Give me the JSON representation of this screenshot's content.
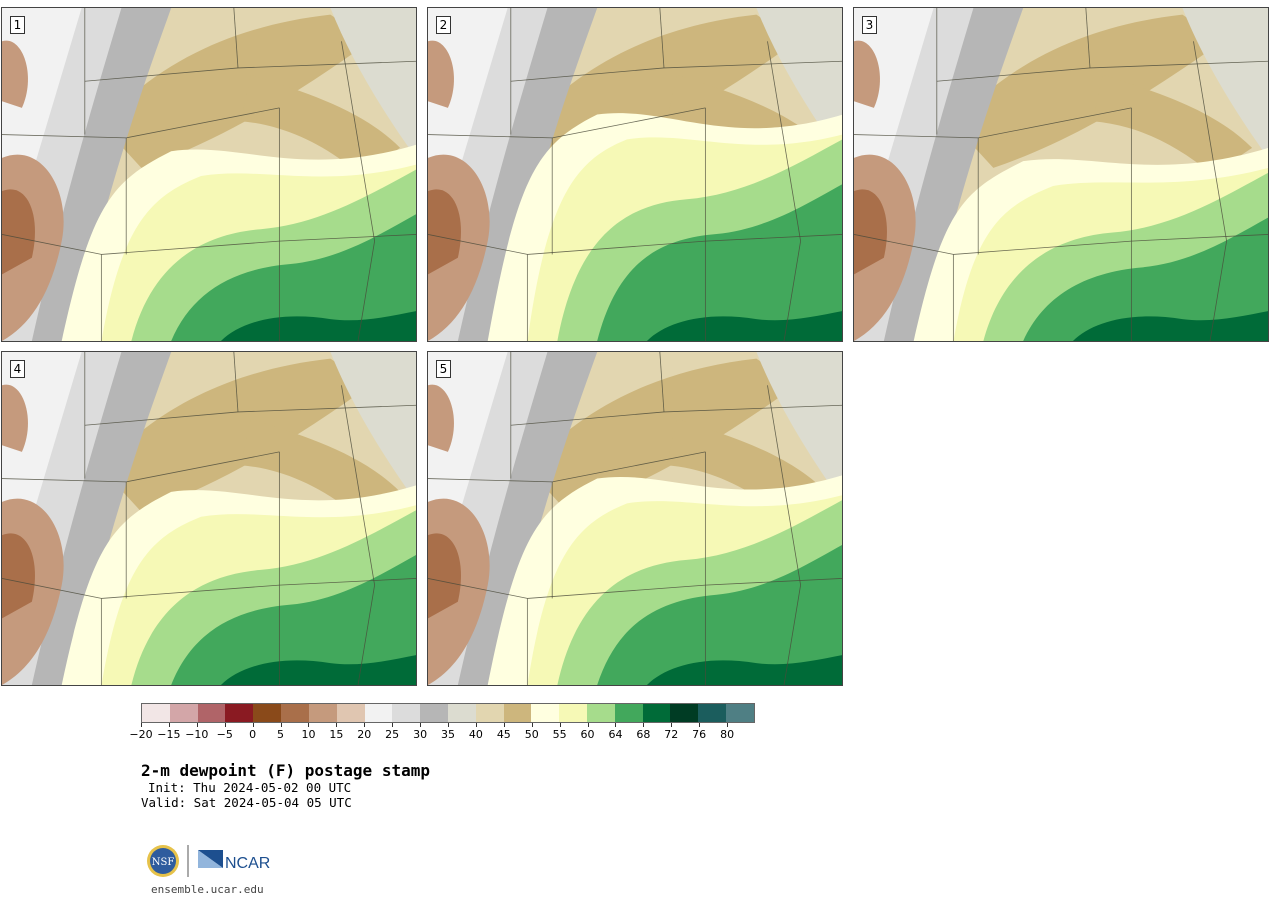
{
  "figure": {
    "title": "2-m dewpoint (F) postage stamp",
    "init": "Init: Thu 2024-05-02 00 UTC",
    "valid": "Valid: Sat 2024-05-04 05 UTC",
    "website": "ensemble.ucar.edu",
    "logos": {
      "nsf": "NSF",
      "ncar": "NCAR"
    }
  },
  "panels": [
    {
      "label": "1",
      "moist_front_frac": 0.53,
      "bulge": 0.1
    },
    {
      "label": "2",
      "moist_front_frac": 0.44,
      "bulge": 0.12
    },
    {
      "label": "3",
      "moist_front_frac": 0.54,
      "bulge": 0.08
    },
    {
      "label": "4",
      "moist_front_frac": 0.52,
      "bulge": 0.1
    },
    {
      "label": "5",
      "moist_front_frac": 0.49,
      "bulge": 0.11
    }
  ],
  "colorbar": {
    "colors": [
      "#f2e6e6",
      "#d3a6a8",
      "#b06468",
      "#8a1a22",
      "#8a4a1a",
      "#a96f4a",
      "#c59a7d",
      "#e0c6b1",
      "#f2f2f2",
      "#dcdcdc",
      "#b6b6b6",
      "#dcdcd0",
      "#e2d6b0",
      "#cdb67d",
      "#ffffe0",
      "#f6f9b6",
      "#a6dc8c",
      "#42a85c",
      "#006b38",
      "#003c24",
      "#1b5d5d",
      "#4f7f84"
    ],
    "tick_labels": [
      "−20",
      "−15",
      "−10",
      "−5",
      "0",
      "5",
      "10",
      "15",
      "20",
      "25",
      "30",
      "35",
      "40",
      "45",
      "50",
      "55",
      "60",
      "64",
      "68",
      "72",
      "76",
      "80"
    ]
  }
}
